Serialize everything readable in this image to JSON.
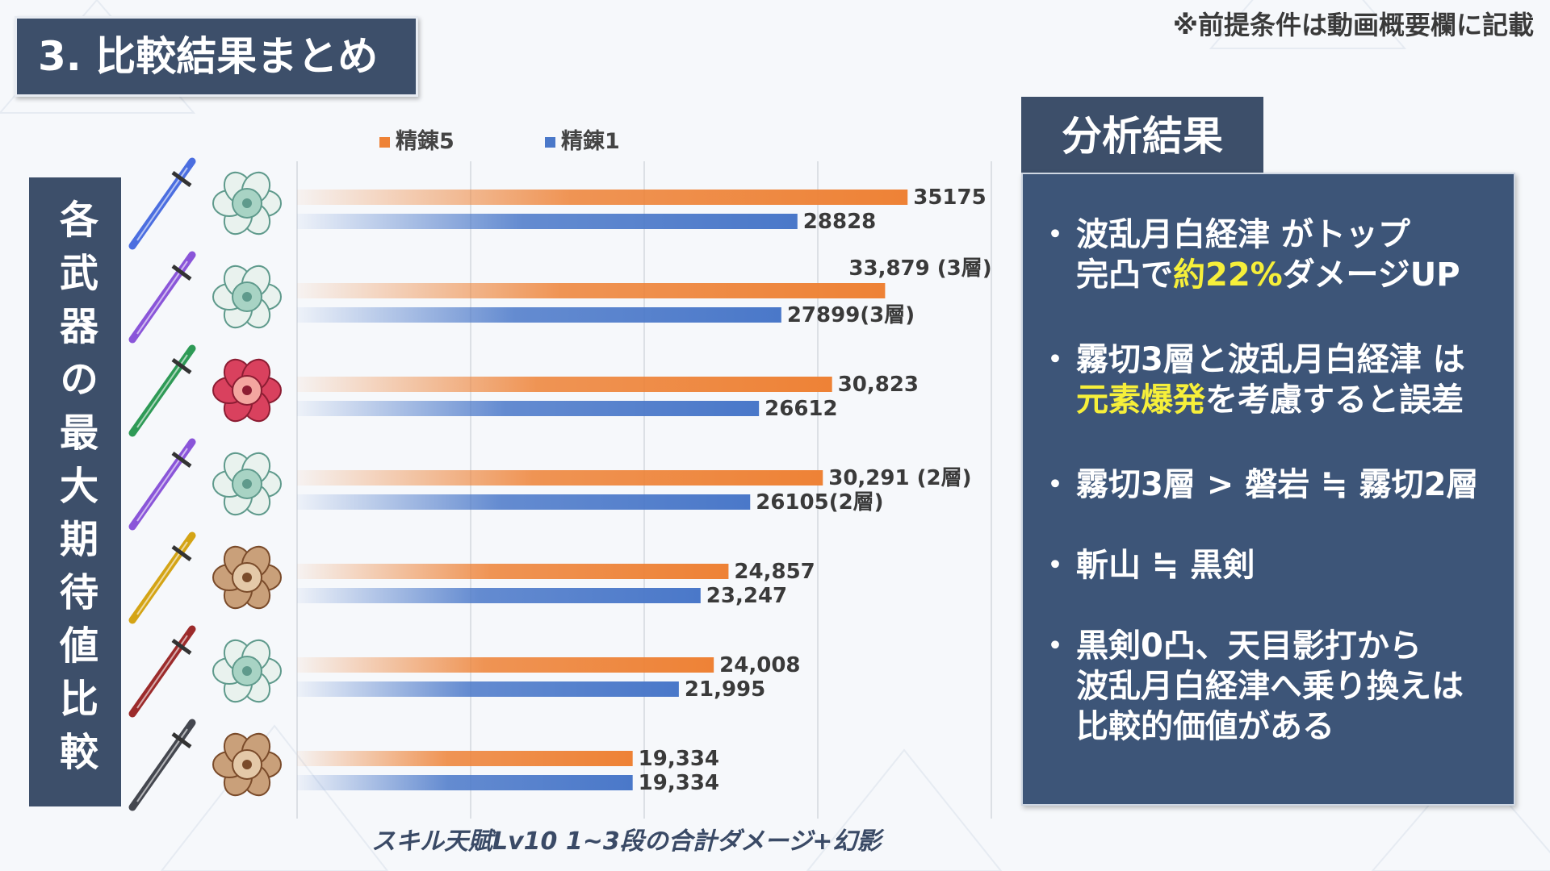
{
  "title": "3. 比較結果まとめ",
  "note": "※前提条件は動画概要欄に記載",
  "vertical_banner": "各武器の最大期待値比較",
  "caption": "スキル天賦Lv10 1~3段の合計ダメージ+幻影",
  "analysis": {
    "tab": "分析結果",
    "bullet_mark": "・",
    "items": [
      {
        "line1": "波乱月白経津 がトップ",
        "line2_pre": "完凸で",
        "line2_hl": "約22%",
        "line2_post": "ダメージUP"
      },
      {
        "line1": "霧切3層と波乱月白経津 は",
        "line2_hl": "元素爆発",
        "line2_post": "を考慮すると誤差"
      },
      {
        "line1": "霧切3層 > 磐岩 ≒ 霧切2層"
      },
      {
        "line1": "斬山 ≒ 黒剣"
      },
      {
        "line1": "黒剣0凸、天目影打から",
        "line2": "波乱月白経津へ乗り換えは",
        "line3": "比較的価値がある"
      }
    ]
  },
  "colors": {
    "r5": "#ee8236",
    "r1": "#4a78c9",
    "dark": "#3d4f6a",
    "panel": "#3d5578",
    "highlight": "#f6ef3a"
  },
  "rows": [
    {
      "sword_color": "#4b6ee0",
      "artifact": "white-flower-icon"
    },
    {
      "sword_color": "#8a55d9",
      "artifact": "white-flower-icon"
    },
    {
      "sword_color": "#2e9a56",
      "artifact": "crimson-flower-icon"
    },
    {
      "sword_color": "#8a55d9",
      "artifact": "white-flower-icon"
    },
    {
      "sword_color": "#d4a415",
      "artifact": "bronze-mask-icon"
    },
    {
      "sword_color": "#9c2b2b",
      "artifact": "white-flower-icon"
    },
    {
      "sword_color": "#44474f",
      "artifact": "bronze-mask-icon"
    }
  ],
  "chart_data": {
    "type": "bar",
    "orientation": "horizontal",
    "xlim": [
      0,
      40000
    ],
    "grid": true,
    "legend_position": "top",
    "series": [
      {
        "name": "精錬5",
        "color": "#ee8236",
        "values": [
          35175,
          33879,
          30823,
          30291,
          24857,
          24008,
          19334
        ],
        "labels": [
          "35175",
          "33,879 (3層)",
          "30,823",
          "30,291 (2層)",
          "24,857",
          "24,008",
          "19,334"
        ]
      },
      {
        "name": "精錬1",
        "color": "#4a78c9",
        "values": [
          28828,
          27899,
          26612,
          26105,
          23247,
          21995,
          19334
        ],
        "labels": [
          "28828",
          "27899(3層)",
          "26612",
          "26105(2層)",
          "23,247",
          "21,995",
          "19,334"
        ]
      }
    ]
  }
}
